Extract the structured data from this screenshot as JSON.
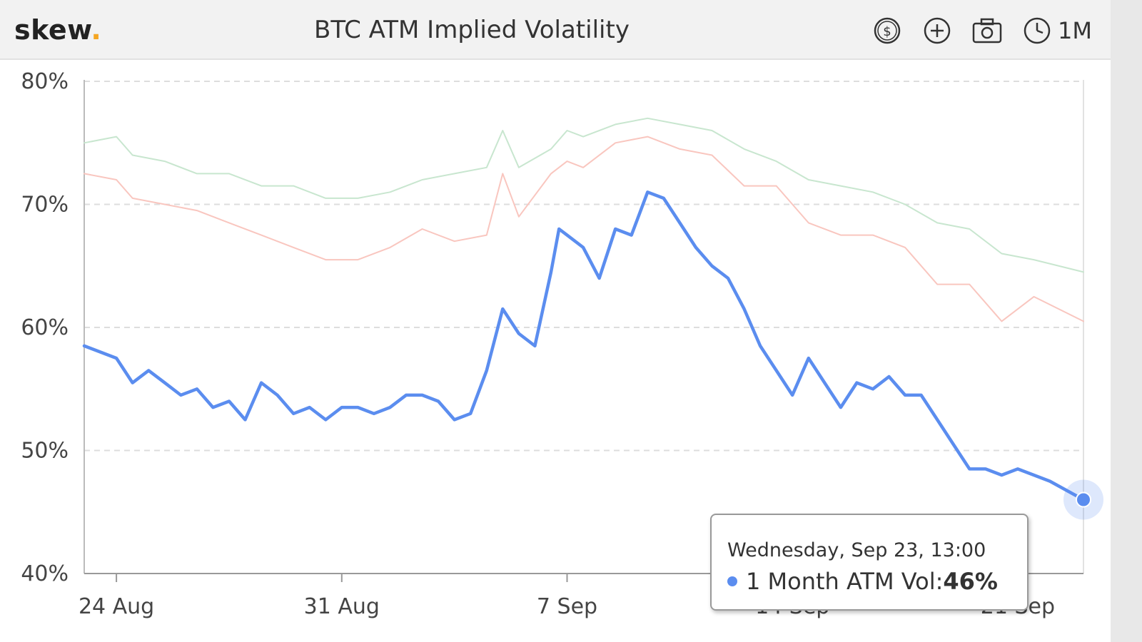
{
  "brand": {
    "name": "skew",
    "dot": "."
  },
  "title": "BTC ATM Implied Volatility",
  "toolbar": {
    "icons": [
      "dollar-icon",
      "plus-circle-icon",
      "camera-icon",
      "clock-icon"
    ],
    "range_label": "1M"
  },
  "colors": {
    "accent": "#f5a623",
    "one_month": "#5b8def",
    "three_month": "#f9c6bf",
    "six_month": "#c8e6cf",
    "grid": "#dddddd"
  },
  "tooltip": {
    "date": "Wednesday, Sep 23, 13:00",
    "series": "1 Month ATM Vol: ",
    "value": "46%"
  },
  "chart_data": {
    "type": "line",
    "yticks": [
      "80%",
      "70%",
      "60%",
      "50%",
      "40%"
    ],
    "ylim": [
      40,
      80
    ],
    "xlim": [
      "2020-08-23T12:00",
      "2020-09-23T13:00"
    ],
    "xticks": [
      {
        "label": "24 Aug",
        "date": "2020-08-24T12:00"
      },
      {
        "label": "31 Aug",
        "date": "2020-08-31T12:00"
      },
      {
        "label": "7 Sep",
        "date": "2020-09-07T12:00"
      },
      {
        "label": "14 Sep",
        "date": "2020-09-14T12:00"
      },
      {
        "label": "21 Sep",
        "date": "2020-09-21T12:00"
      }
    ],
    "grid": true,
    "series": [
      {
        "name": "",
        "key": "six_month",
        "points": [
          [
            "2020-08-23T12:00",
            75.0
          ],
          [
            "2020-08-24T12:00",
            75.5
          ],
          [
            "2020-08-25T00:00",
            74.0
          ],
          [
            "2020-08-26T00:00",
            73.5
          ],
          [
            "2020-08-27T00:00",
            72.5
          ],
          [
            "2020-08-28T00:00",
            72.5
          ],
          [
            "2020-08-29T00:00",
            71.5
          ],
          [
            "2020-08-30T00:00",
            71.5
          ],
          [
            "2020-08-31T00:00",
            70.5
          ],
          [
            "2020-09-01T00:00",
            70.5
          ],
          [
            "2020-09-02T00:00",
            71.0
          ],
          [
            "2020-09-03T00:00",
            72.0
          ],
          [
            "2020-09-04T00:00",
            72.5
          ],
          [
            "2020-09-05T00:00",
            73.0
          ],
          [
            "2020-09-05T12:00",
            76.0
          ],
          [
            "2020-09-06T00:00",
            73.0
          ],
          [
            "2020-09-07T00:00",
            74.5
          ],
          [
            "2020-09-07T12:00",
            76.0
          ],
          [
            "2020-09-08T00:00",
            75.5
          ],
          [
            "2020-09-09T00:00",
            76.5
          ],
          [
            "2020-09-10T00:00",
            77.0
          ],
          [
            "2020-09-11T00:00",
            76.5
          ],
          [
            "2020-09-12T00:00",
            76.0
          ],
          [
            "2020-09-13T00:00",
            74.5
          ],
          [
            "2020-09-14T00:00",
            73.5
          ],
          [
            "2020-09-15T00:00",
            72.0
          ],
          [
            "2020-09-16T00:00",
            71.5
          ],
          [
            "2020-09-17T00:00",
            71.0
          ],
          [
            "2020-09-18T00:00",
            70.0
          ],
          [
            "2020-09-19T00:00",
            68.5
          ],
          [
            "2020-09-20T00:00",
            68.0
          ],
          [
            "2020-09-21T00:00",
            66.0
          ],
          [
            "2020-09-22T00:00",
            65.5
          ],
          [
            "2020-09-23T13:00",
            64.5
          ]
        ]
      },
      {
        "name": "",
        "key": "three_month",
        "points": [
          [
            "2020-08-23T12:00",
            72.5
          ],
          [
            "2020-08-24T12:00",
            72.0
          ],
          [
            "2020-08-25T00:00",
            70.5
          ],
          [
            "2020-08-26T00:00",
            70.0
          ],
          [
            "2020-08-27T00:00",
            69.5
          ],
          [
            "2020-08-28T00:00",
            68.5
          ],
          [
            "2020-08-29T00:00",
            67.5
          ],
          [
            "2020-08-30T00:00",
            66.5
          ],
          [
            "2020-08-31T00:00",
            65.5
          ],
          [
            "2020-09-01T00:00",
            65.5
          ],
          [
            "2020-09-02T00:00",
            66.5
          ],
          [
            "2020-09-03T00:00",
            68.0
          ],
          [
            "2020-09-04T00:00",
            67.0
          ],
          [
            "2020-09-05T00:00",
            67.5
          ],
          [
            "2020-09-05T12:00",
            72.5
          ],
          [
            "2020-09-06T00:00",
            69.0
          ],
          [
            "2020-09-07T00:00",
            72.5
          ],
          [
            "2020-09-07T12:00",
            73.5
          ],
          [
            "2020-09-08T00:00",
            73.0
          ],
          [
            "2020-09-09T00:00",
            75.0
          ],
          [
            "2020-09-10T00:00",
            75.5
          ],
          [
            "2020-09-11T00:00",
            74.5
          ],
          [
            "2020-09-12T00:00",
            74.0
          ],
          [
            "2020-09-13T00:00",
            71.5
          ],
          [
            "2020-09-14T00:00",
            71.5
          ],
          [
            "2020-09-15T00:00",
            68.5
          ],
          [
            "2020-09-16T00:00",
            67.5
          ],
          [
            "2020-09-17T00:00",
            67.5
          ],
          [
            "2020-09-18T00:00",
            66.5
          ],
          [
            "2020-09-19T00:00",
            63.5
          ],
          [
            "2020-09-20T00:00",
            63.5
          ],
          [
            "2020-09-21T00:00",
            60.5
          ],
          [
            "2020-09-22T00:00",
            62.5
          ],
          [
            "2020-09-23T13:00",
            60.5
          ]
        ]
      },
      {
        "name": "1 Month ATM Vol",
        "key": "one_month",
        "points": [
          [
            "2020-08-23T12:00",
            58.5
          ],
          [
            "2020-08-24T00:00",
            58.0
          ],
          [
            "2020-08-24T12:00",
            57.5
          ],
          [
            "2020-08-25T00:00",
            55.5
          ],
          [
            "2020-08-25T12:00",
            56.5
          ],
          [
            "2020-08-26T00:00",
            55.5
          ],
          [
            "2020-08-26T12:00",
            54.5
          ],
          [
            "2020-08-27T00:00",
            55.0
          ],
          [
            "2020-08-27T12:00",
            53.5
          ],
          [
            "2020-08-28T00:00",
            54.0
          ],
          [
            "2020-08-28T12:00",
            52.5
          ],
          [
            "2020-08-29T00:00",
            55.5
          ],
          [
            "2020-08-29T12:00",
            54.5
          ],
          [
            "2020-08-30T00:00",
            53.0
          ],
          [
            "2020-08-30T12:00",
            53.5
          ],
          [
            "2020-08-31T00:00",
            52.5
          ],
          [
            "2020-08-31T12:00",
            53.5
          ],
          [
            "2020-09-01T00:00",
            53.5
          ],
          [
            "2020-09-01T12:00",
            53.0
          ],
          [
            "2020-09-02T00:00",
            53.5
          ],
          [
            "2020-09-02T12:00",
            54.5
          ],
          [
            "2020-09-03T00:00",
            54.5
          ],
          [
            "2020-09-03T12:00",
            54.0
          ],
          [
            "2020-09-04T00:00",
            52.5
          ],
          [
            "2020-09-04T12:00",
            53.0
          ],
          [
            "2020-09-05T00:00",
            56.5
          ],
          [
            "2020-09-05T12:00",
            61.5
          ],
          [
            "2020-09-06T00:00",
            59.5
          ],
          [
            "2020-09-06T12:00",
            58.5
          ],
          [
            "2020-09-07T00:00",
            64.5
          ],
          [
            "2020-09-07T06:00",
            68.0
          ],
          [
            "2020-09-07T12:00",
            67.5
          ],
          [
            "2020-09-08T00:00",
            66.5
          ],
          [
            "2020-09-08T12:00",
            64.0
          ],
          [
            "2020-09-09T00:00",
            68.0
          ],
          [
            "2020-09-09T12:00",
            67.5
          ],
          [
            "2020-09-10T00:00",
            71.0
          ],
          [
            "2020-09-10T12:00",
            70.5
          ],
          [
            "2020-09-11T00:00",
            68.5
          ],
          [
            "2020-09-11T12:00",
            66.5
          ],
          [
            "2020-09-12T00:00",
            65.0
          ],
          [
            "2020-09-12T12:00",
            64.0
          ],
          [
            "2020-09-13T00:00",
            61.5
          ],
          [
            "2020-09-13T12:00",
            58.5
          ],
          [
            "2020-09-14T00:00",
            56.5
          ],
          [
            "2020-09-14T12:00",
            54.5
          ],
          [
            "2020-09-15T00:00",
            57.5
          ],
          [
            "2020-09-15T12:00",
            55.5
          ],
          [
            "2020-09-16T00:00",
            53.5
          ],
          [
            "2020-09-16T12:00",
            55.5
          ],
          [
            "2020-09-17T00:00",
            55.0
          ],
          [
            "2020-09-17T12:00",
            56.0
          ],
          [
            "2020-09-18T00:00",
            54.5
          ],
          [
            "2020-09-18T12:00",
            54.5
          ],
          [
            "2020-09-19T00:00",
            52.5
          ],
          [
            "2020-09-19T12:00",
            50.5
          ],
          [
            "2020-09-20T00:00",
            48.5
          ],
          [
            "2020-09-20T12:00",
            48.5
          ],
          [
            "2020-09-21T00:00",
            48.0
          ],
          [
            "2020-09-21T12:00",
            48.5
          ],
          [
            "2020-09-22T00:00",
            48.0
          ],
          [
            "2020-09-22T12:00",
            47.5
          ],
          [
            "2020-09-23T13:00",
            46.0
          ]
        ]
      }
    ],
    "highlight_point": [
      "2020-09-23T13:00",
      46.0
    ]
  }
}
